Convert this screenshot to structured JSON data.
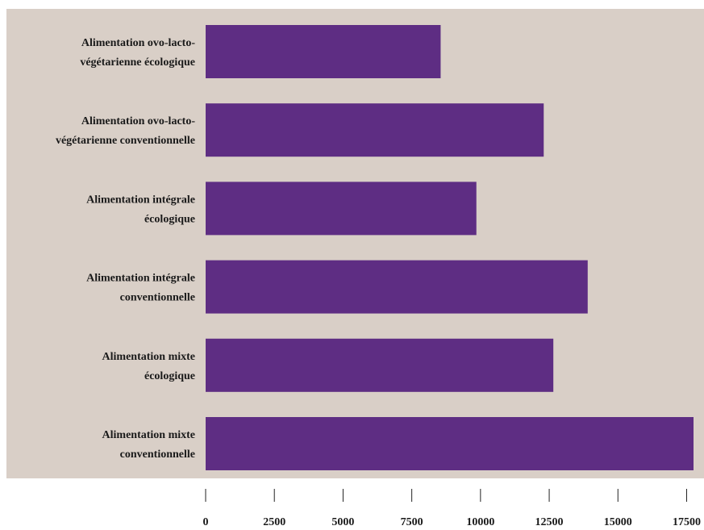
{
  "colors": {
    "plot_bg": "#d9cfc7",
    "bar": "#5e2d83",
    "tick": "#222222"
  },
  "chart_data": {
    "type": "bar",
    "orientation": "horizontal",
    "categories": [
      [
        "Alimentation ovo-lacto-",
        "végétarienne écologique"
      ],
      [
        "Alimentation ovo-lacto-",
        "végétarienne conventionnelle"
      ],
      [
        "Alimentation intégrale",
        "écologique"
      ],
      [
        "Alimentation intégrale",
        "conventionnelle"
      ],
      [
        "Alimentation mixte",
        "écologique"
      ],
      [
        "Alimentation mixte",
        "conventionnelle"
      ]
    ],
    "values": [
      8550,
      12300,
      9850,
      13900,
      12650,
      17750
    ],
    "xlim": [
      0,
      17750
    ],
    "ticks": [
      0,
      2500,
      5000,
      7500,
      10000,
      12500,
      15000,
      17500
    ],
    "grid": false,
    "legend": "none"
  }
}
